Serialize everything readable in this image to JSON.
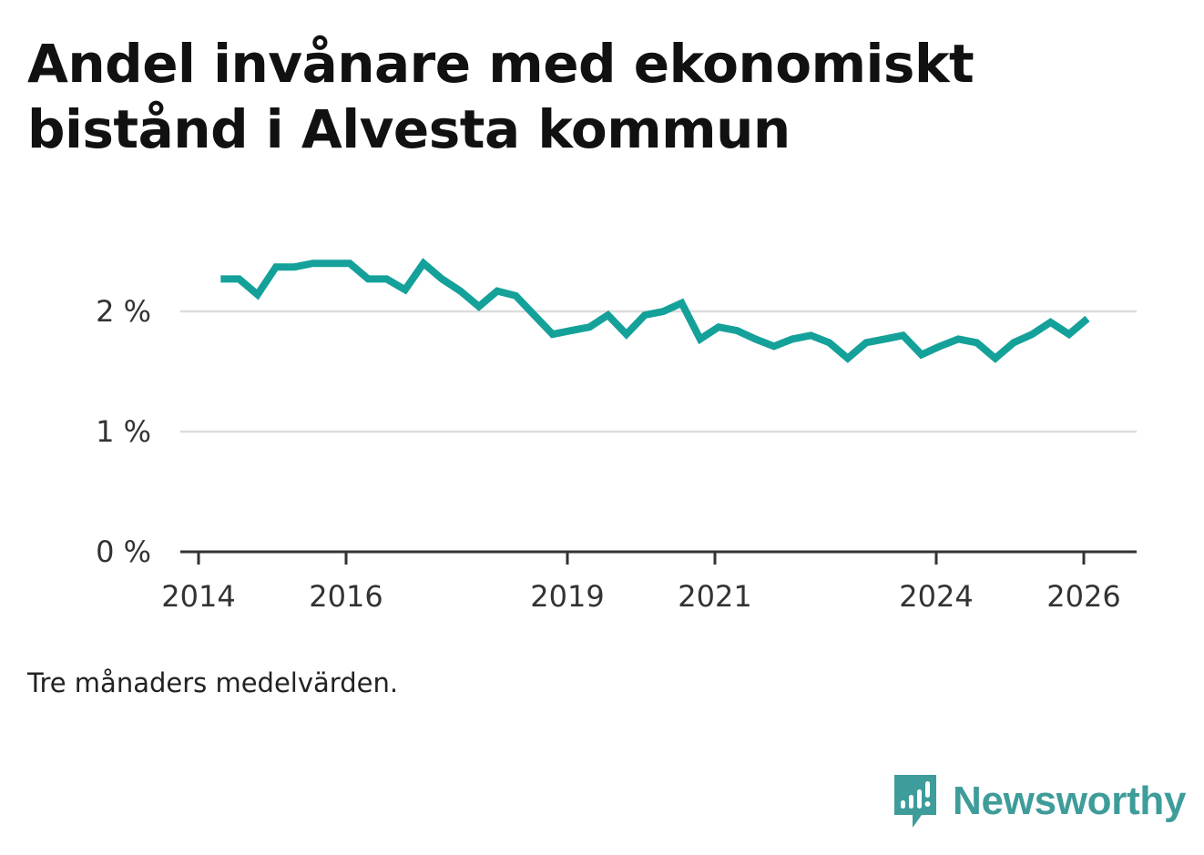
{
  "chart_data": {
    "type": "line",
    "title": "Andel invånare med ekonomiskt bistånd i Alvesta kommun",
    "note": "Tre månaders medelvärden.",
    "xlabel": "",
    "ylabel": "",
    "y_ticks": [
      {
        "value": 0,
        "label": "0 %"
      },
      {
        "value": 1,
        "label": "1 %"
      },
      {
        "value": 2,
        "label": "2 %"
      }
    ],
    "x_ticks": [
      {
        "value": 2014.0,
        "label": "2014"
      },
      {
        "value": 2016.0,
        "label": "2016"
      },
      {
        "value": 2019.0,
        "label": "2019"
      },
      {
        "value": 2021.0,
        "label": "2021"
      },
      {
        "value": 2024.0,
        "label": "2024"
      },
      {
        "value": 2026.0,
        "label": "2026"
      }
    ],
    "xlim": [
      2014.0,
      2026.7
    ],
    "ylim": [
      0,
      2.5
    ],
    "grid": true,
    "series": [
      {
        "name": "Andel invånare med ekonomiskt bistånd",
        "color": "#14a19a",
        "x": [
          2014.3,
          2014.55,
          2014.8,
          2015.05,
          2015.3,
          2015.55,
          2015.8,
          2016.05,
          2016.3,
          2016.55,
          2016.8,
          2017.05,
          2017.3,
          2017.55,
          2017.8,
          2018.05,
          2018.3,
          2018.55,
          2018.8,
          2019.05,
          2019.3,
          2019.55,
          2019.8,
          2020.05,
          2020.3,
          2020.55,
          2020.8,
          2021.05,
          2021.3,
          2021.55,
          2021.8,
          2022.05,
          2022.3,
          2022.55,
          2022.8,
          2023.05,
          2023.3,
          2023.55,
          2023.8,
          2024.05,
          2024.3,
          2024.55,
          2024.8,
          2025.05,
          2025.3,
          2025.55,
          2025.8,
          2026.05
        ],
        "values": [
          2.27,
          2.27,
          2.14,
          2.37,
          2.37,
          2.4,
          2.4,
          2.4,
          2.27,
          2.27,
          2.18,
          2.4,
          2.27,
          2.17,
          2.04,
          2.17,
          2.13,
          1.97,
          1.81,
          1.84,
          1.87,
          1.97,
          1.81,
          1.97,
          2.0,
          2.07,
          1.77,
          1.87,
          1.84,
          1.77,
          1.71,
          1.77,
          1.8,
          1.74,
          1.61,
          1.74,
          1.77,
          1.8,
          1.64,
          1.71,
          1.77,
          1.74,
          1.61,
          1.74,
          1.81,
          1.91,
          1.81,
          1.94
        ]
      }
    ]
  },
  "colors": {
    "line": "#14a19a",
    "grid": "#dcdcdc",
    "axis": "#333333",
    "brand": "#3e9c9a"
  },
  "brand": {
    "name": "Newsworthy",
    "icon": "newsworthy-logo-icon"
  }
}
